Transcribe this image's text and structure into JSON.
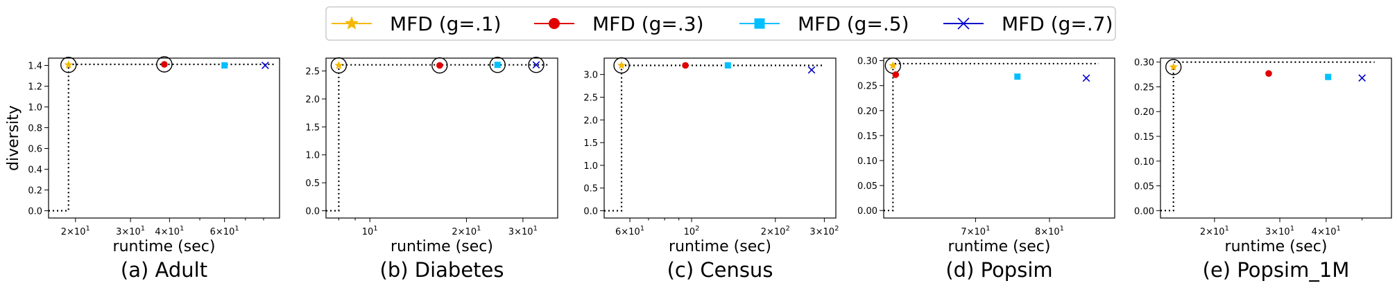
{
  "legend": {
    "entries": [
      {
        "label": "MFD (g=.1)",
        "color": "#f5b800",
        "marker": "star"
      },
      {
        "label": "MFD (g=.3)",
        "color": "#e00000",
        "marker": "circle"
      },
      {
        "label": "MFD (g=.5)",
        "color": "#00bfff",
        "marker": "square"
      },
      {
        "label": "MFD (g=.7)",
        "color": "#0000cc",
        "marker": "x"
      }
    ]
  },
  "chart_data": [
    {
      "type": "scatter",
      "caption": "(a) Adult",
      "xlabel": "runtime (sec)",
      "ylabel": "diversity",
      "xscale": "log",
      "xlim": [
        16.4,
        90
      ],
      "ylim": [
        -0.07,
        1.47
      ],
      "yticks": [
        0.0,
        0.2,
        0.4,
        0.6,
        0.8,
        1.0,
        1.2,
        1.4
      ],
      "ytick_labels": [
        "0.0",
        "0.2",
        "0.4",
        "0.6",
        "0.8",
        "1.0",
        "1.2",
        "1.4"
      ],
      "xticks": [
        20,
        30,
        40,
        60
      ],
      "xtick_labels": [
        "2×10¹",
        "3×10¹",
        "4×10¹",
        "6×10¹"
      ],
      "minor_xticks": [
        50,
        70,
        80
      ],
      "points": [
        {
          "x": 19.0,
          "y": 1.405
        },
        {
          "x": 38.5,
          "y": 1.41
        },
        {
          "x": 60.0,
          "y": 1.4
        },
        {
          "x": 81.0,
          "y": 1.4
        }
      ],
      "pareto": [
        true,
        true,
        false,
        false
      ],
      "frontier_y": 1.41
    },
    {
      "type": "scatter",
      "caption": "(b) Diabetes",
      "xlabel": "runtime (sec)",
      "ylabel": "",
      "xscale": "log",
      "xlim": [
        7.3,
        38.5
      ],
      "ylim": [
        -0.13,
        2.73
      ],
      "yticks": [
        0.0,
        0.5,
        1.0,
        1.5,
        2.0,
        2.5
      ],
      "ytick_labels": [
        "0.0",
        "0.5",
        "1.0",
        "1.5",
        "2.0",
        "2.5"
      ],
      "xticks": [
        10,
        20,
        30
      ],
      "xtick_labels": [
        "10¹",
        "2×10¹",
        "3×10¹"
      ],
      "minor_xticks": [
        8,
        9
      ],
      "points": [
        {
          "x": 8.0,
          "y": 2.6
        },
        {
          "x": 16.5,
          "y": 2.6
        },
        {
          "x": 25.0,
          "y": 2.61
        },
        {
          "x": 33.0,
          "y": 2.61
        }
      ],
      "pareto": [
        true,
        true,
        true,
        true
      ],
      "frontier_y": 2.61
    },
    {
      "type": "scatter",
      "caption": "(c) Census",
      "xlabel": "runtime (sec)",
      "ylabel": "",
      "xscale": "log",
      "xlim": [
        48.5,
        330
      ],
      "ylim": [
        -0.16,
        3.36
      ],
      "yticks": [
        0.0,
        0.5,
        1.0,
        1.5,
        2.0,
        2.5,
        3.0
      ],
      "ytick_labels": [
        "0.0",
        "0.5",
        "1.0",
        "1.5",
        "2.0",
        "2.5",
        "3.0"
      ],
      "xticks": [
        60,
        100,
        200,
        300
      ],
      "xtick_labels": [
        "6×10¹",
        "10²",
        "2×10²",
        "3×10²"
      ],
      "minor_xticks": [
        70,
        80,
        90
      ],
      "points": [
        {
          "x": 56.0,
          "y": 3.2
        },
        {
          "x": 95.0,
          "y": 3.2
        },
        {
          "x": 135.0,
          "y": 3.2
        },
        {
          "x": 270.0,
          "y": 3.1
        }
      ],
      "pareto": [
        true,
        false,
        false,
        false
      ],
      "frontier_y": 3.2
    },
    {
      "type": "scatter",
      "caption": "(d) Popsim",
      "xlabel": "runtime (sec)",
      "ylabel": "",
      "xscale": "log",
      "xlim": [
        59.3,
        90.0
      ],
      "ylim": [
        -0.015,
        0.305
      ],
      "yticks": [
        0.0,
        0.05,
        0.1,
        0.15,
        0.2,
        0.25,
        0.3
      ],
      "ytick_labels": [
        "0.00",
        "0.05",
        "0.10",
        "0.15",
        "0.20",
        "0.25",
        "0.30"
      ],
      "xticks": [
        70,
        80
      ],
      "xtick_labels": [
        "7×10¹",
        "8×10¹"
      ],
      "minor_xticks": [],
      "points": [
        {
          "x": 60.3,
          "y": 0.29
        },
        {
          "x": 60.6,
          "y": 0.272
        },
        {
          "x": 75.5,
          "y": 0.268
        },
        {
          "x": 85.5,
          "y": 0.265
        }
      ],
      "pareto": [
        true,
        false,
        false,
        false
      ],
      "frontier_y": 0.294
    },
    {
      "type": "scatter",
      "caption": "(e) Popsim_1M",
      "xlabel": "runtime (sec)",
      "ylabel": "",
      "xscale": "log",
      "xlim": [
        14.3,
        60
      ],
      "ylim": [
        -0.015,
        0.308
      ],
      "yticks": [
        0.0,
        0.05,
        0.1,
        0.15,
        0.2,
        0.25,
        0.3
      ],
      "ytick_labels": [
        "0.00",
        "0.05",
        "0.10",
        "0.15",
        "0.20",
        "0.25",
        "0.30"
      ],
      "xticks": [
        20,
        30,
        40
      ],
      "xtick_labels": [
        "2×10¹",
        "3×10¹",
        "4×10¹"
      ],
      "minor_xticks": [
        50
      ],
      "points": [
        {
          "x": 15.5,
          "y": 0.29
        },
        {
          "x": 28.0,
          "y": 0.277
        },
        {
          "x": 40.5,
          "y": 0.27
        },
        {
          "x": 50.0,
          "y": 0.268
        }
      ],
      "pareto": [
        true,
        false,
        false,
        false
      ],
      "frontier_y": 0.3
    }
  ]
}
